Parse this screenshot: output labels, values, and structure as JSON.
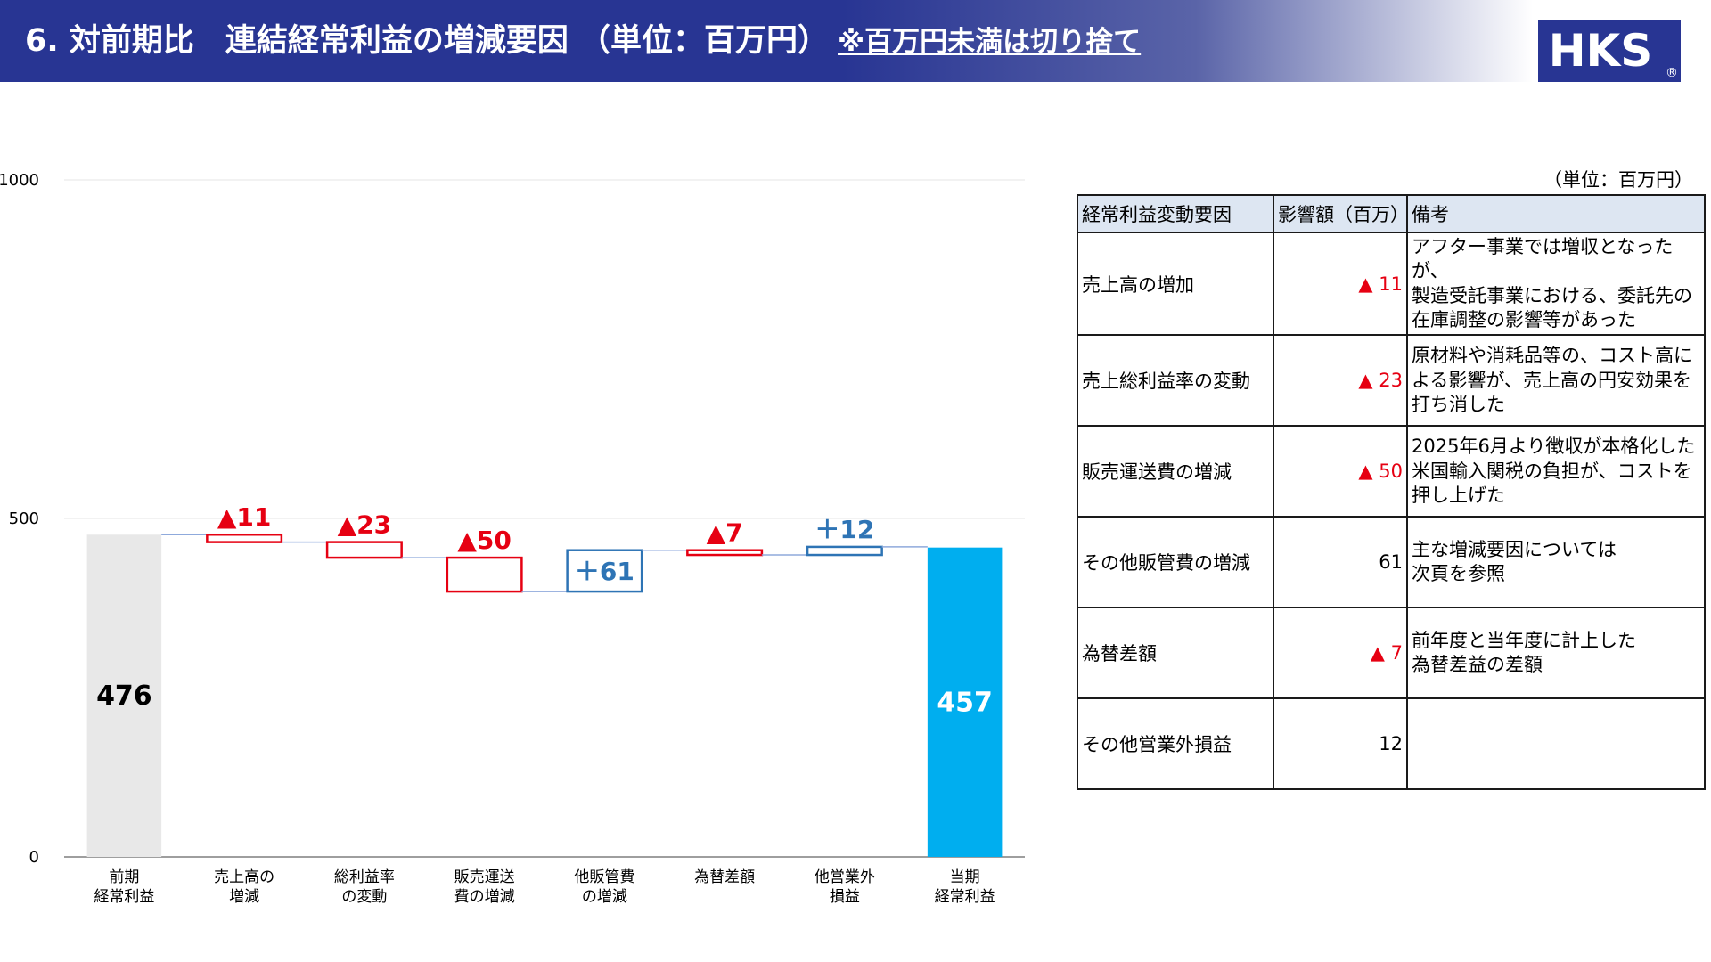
{
  "title": {
    "main": "6. 対前期比　連結経常利益の増減要因 （単位：百万円）",
    "note": "※百万円未満は切り捨て"
  },
  "logo": {
    "text": "HKS",
    "mark": "®",
    "bg": "#283593",
    "fg": "#ffffff"
  },
  "chart_data": {
    "type": "waterfall",
    "ylim": [
      0,
      1000
    ],
    "yticks": [
      "0",
      "500",
      "1000"
    ],
    "grid": true,
    "categories": [
      "前期\n経常利益",
      "売上高の\n増減",
      "総利益率\nの変動",
      "販売運送\n費の増減",
      "他販管費\nの増減",
      "為替差額",
      "他営業外\n損益",
      "当期\n経常利益"
    ],
    "start": {
      "value": 476,
      "label": "476",
      "color": "#e8e8e8"
    },
    "steps": [
      {
        "value": -11,
        "label": "▲11"
      },
      {
        "value": -23,
        "label": "▲23"
      },
      {
        "value": -50,
        "label": "▲50"
      },
      {
        "value": 61,
        "label": "＋61"
      },
      {
        "value": -7,
        "label": "▲7"
      },
      {
        "value": 12,
        "label": "＋12"
      }
    ],
    "end": {
      "value": 457,
      "label": "457",
      "color": "#00aeef"
    },
    "colors": {
      "decrease": "#e60012",
      "increase": "#2e74b5",
      "connector": "#8faadc",
      "grid": "#e6e6e6",
      "axis": "#7f7f7f"
    }
  },
  "table": {
    "unit": "（単位：百万円）",
    "headers": [
      "経常利益変動要因",
      "影響額（百万）",
      "備考"
    ],
    "rows": [
      {
        "factor": "売上高の増加",
        "mark": "▲",
        "amount": "11",
        "note": "アフター事業では増収となったが、\n製造受託事業における、委託先の\n在庫調整の影響等があった"
      },
      {
        "factor": "売上総利益率の変動",
        "mark": "▲",
        "amount": "23",
        "note": "原材料や消耗品等の、コスト高に\nよる影響が、売上高の円安効果を\n打ち消した"
      },
      {
        "factor": "販売運送費の増減",
        "mark": "▲",
        "amount": "50",
        "note": "2025年6月より徴収が本格化した\n米国輸入関税の負担が、コストを\n押し上げた"
      },
      {
        "factor": "その他販管費の増減",
        "mark": "",
        "amount": "61",
        "note": "主な増減要因については\n次頁を参照"
      },
      {
        "factor": "為替差額",
        "mark": "▲",
        "amount": "7",
        "note": "前年度と当年度に計上した\n為替差益の差額"
      },
      {
        "factor": "その他営業外損益",
        "mark": "",
        "amount": "12",
        "note": ""
      }
    ]
  }
}
